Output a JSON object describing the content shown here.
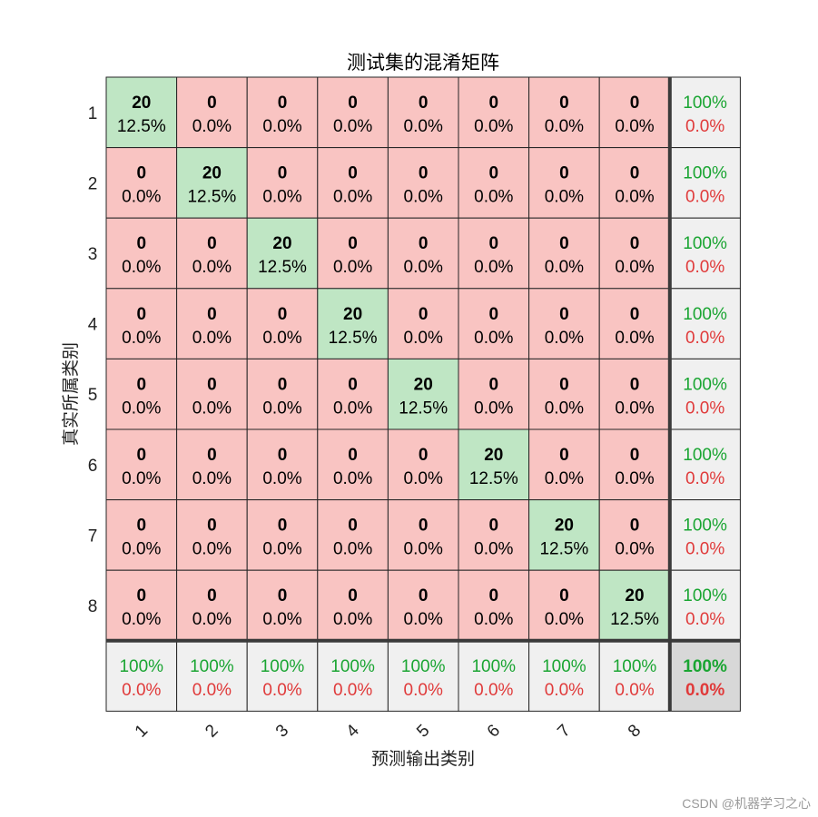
{
  "chart_data": {
    "type": "heatmap",
    "title": "测试集的混淆矩阵",
    "xlabel": "预测输出类别",
    "ylabel": "真实所属类别",
    "classes": [
      "1",
      "2",
      "3",
      "4",
      "5",
      "6",
      "7",
      "8"
    ],
    "x_tick_labels": [
      "1",
      "2",
      "3",
      "4",
      "5",
      "6",
      "7",
      "8"
    ],
    "y_tick_labels": [
      "1",
      "2",
      "3",
      "4",
      "5",
      "6",
      "7",
      "8"
    ],
    "counts": [
      [
        20,
        0,
        0,
        0,
        0,
        0,
        0,
        0
      ],
      [
        0,
        20,
        0,
        0,
        0,
        0,
        0,
        0
      ],
      [
        0,
        0,
        20,
        0,
        0,
        0,
        0,
        0
      ],
      [
        0,
        0,
        0,
        20,
        0,
        0,
        0,
        0
      ],
      [
        0,
        0,
        0,
        0,
        20,
        0,
        0,
        0
      ],
      [
        0,
        0,
        0,
        0,
        0,
        20,
        0,
        0
      ],
      [
        0,
        0,
        0,
        0,
        0,
        0,
        20,
        0
      ],
      [
        0,
        0,
        0,
        0,
        0,
        0,
        0,
        20
      ]
    ],
    "percentages": [
      [
        "12.5%",
        "0.0%",
        "0.0%",
        "0.0%",
        "0.0%",
        "0.0%",
        "0.0%",
        "0.0%"
      ],
      [
        "0.0%",
        "12.5%",
        "0.0%",
        "0.0%",
        "0.0%",
        "0.0%",
        "0.0%",
        "0.0%"
      ],
      [
        "0.0%",
        "0.0%",
        "12.5%",
        "0.0%",
        "0.0%",
        "0.0%",
        "0.0%",
        "0.0%"
      ],
      [
        "0.0%",
        "0.0%",
        "0.0%",
        "12.5%",
        "0.0%",
        "0.0%",
        "0.0%",
        "0.0%"
      ],
      [
        "0.0%",
        "0.0%",
        "0.0%",
        "0.0%",
        "12.5%",
        "0.0%",
        "0.0%",
        "0.0%"
      ],
      [
        "0.0%",
        "0.0%",
        "0.0%",
        "0.0%",
        "0.0%",
        "12.5%",
        "0.0%",
        "0.0%"
      ],
      [
        "0.0%",
        "0.0%",
        "0.0%",
        "0.0%",
        "0.0%",
        "0.0%",
        "12.5%",
        "0.0%"
      ],
      [
        "0.0%",
        "0.0%",
        "0.0%",
        "0.0%",
        "0.0%",
        "0.0%",
        "0.0%",
        "12.5%"
      ]
    ],
    "row_summary": [
      {
        "correct": "100%",
        "wrong": "0.0%"
      },
      {
        "correct": "100%",
        "wrong": "0.0%"
      },
      {
        "correct": "100%",
        "wrong": "0.0%"
      },
      {
        "correct": "100%",
        "wrong": "0.0%"
      },
      {
        "correct": "100%",
        "wrong": "0.0%"
      },
      {
        "correct": "100%",
        "wrong": "0.0%"
      },
      {
        "correct": "100%",
        "wrong": "0.0%"
      },
      {
        "correct": "100%",
        "wrong": "0.0%"
      }
    ],
    "column_summary": [
      {
        "correct": "100%",
        "wrong": "0.0%"
      },
      {
        "correct": "100%",
        "wrong": "0.0%"
      },
      {
        "correct": "100%",
        "wrong": "0.0%"
      },
      {
        "correct": "100%",
        "wrong": "0.0%"
      },
      {
        "correct": "100%",
        "wrong": "0.0%"
      },
      {
        "correct": "100%",
        "wrong": "0.0%"
      },
      {
        "correct": "100%",
        "wrong": "0.0%"
      },
      {
        "correct": "100%",
        "wrong": "0.0%"
      }
    ],
    "overall": {
      "correct": "100%",
      "wrong": "0.0%"
    }
  },
  "colors": {
    "diagonal_fill": "#bfe6c4",
    "offdiagonal_fill": "#f9c4c2",
    "summary_fill": "#f0f0f0",
    "overall_fill": "#d8d8d8",
    "correct_text": "#1aa532",
    "wrong_text": "#e03a3a",
    "grid_line": "#262626"
  },
  "watermark": "CSDN @机器学习之心"
}
